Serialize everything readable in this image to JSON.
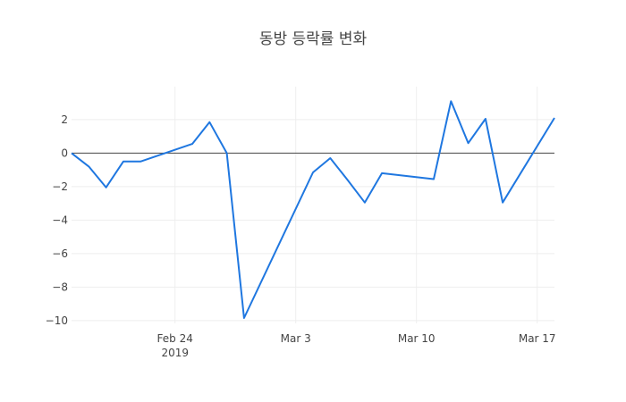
{
  "chart_data": {
    "type": "line",
    "title": "동방 등락률 변화",
    "xlabel": "",
    "ylabel": "",
    "x": [
      "2019-02-18",
      "2019-02-19",
      "2019-02-20",
      "2019-02-21",
      "2019-02-22",
      "2019-02-25",
      "2019-02-26",
      "2019-02-27",
      "2019-02-28",
      "2019-03-04",
      "2019-03-05",
      "2019-03-06",
      "2019-03-07",
      "2019-03-08",
      "2019-03-11",
      "2019-03-12",
      "2019-03-13",
      "2019-03-14",
      "2019-03-15",
      "2019-03-18"
    ],
    "series": [
      {
        "name": "등락률",
        "color": "#1f77e0",
        "values": [
          0.0,
          -0.8,
          -2.05,
          -0.5,
          -0.5,
          0.55,
          1.85,
          0.0,
          -9.85,
          -1.15,
          -0.3,
          -1.6,
          -2.95,
          -1.2,
          -1.55,
          3.1,
          0.6,
          2.05,
          -2.95,
          2.1
        ]
      }
    ],
    "xticks": [
      {
        "label": "Feb 24",
        "sublabel": "2019",
        "date": "2019-02-24"
      },
      {
        "label": "Mar 3",
        "sublabel": "",
        "date": "2019-03-03"
      },
      {
        "label": "Mar 10",
        "sublabel": "",
        "date": "2019-03-10"
      },
      {
        "label": "Mar 17",
        "sublabel": "",
        "date": "2019-03-17"
      }
    ],
    "yticks": [
      2,
      0,
      -2,
      -4,
      -6,
      -8,
      -10
    ],
    "ytick_labels": [
      "2",
      "0",
      "−2",
      "−4",
      "−6",
      "−8",
      "−10"
    ],
    "ylim": [
      -10.17,
      3.97
    ],
    "xlim": [
      "2019-02-18",
      "2019-03-18"
    ],
    "grid": true,
    "zero_line": true,
    "legend": "none"
  }
}
